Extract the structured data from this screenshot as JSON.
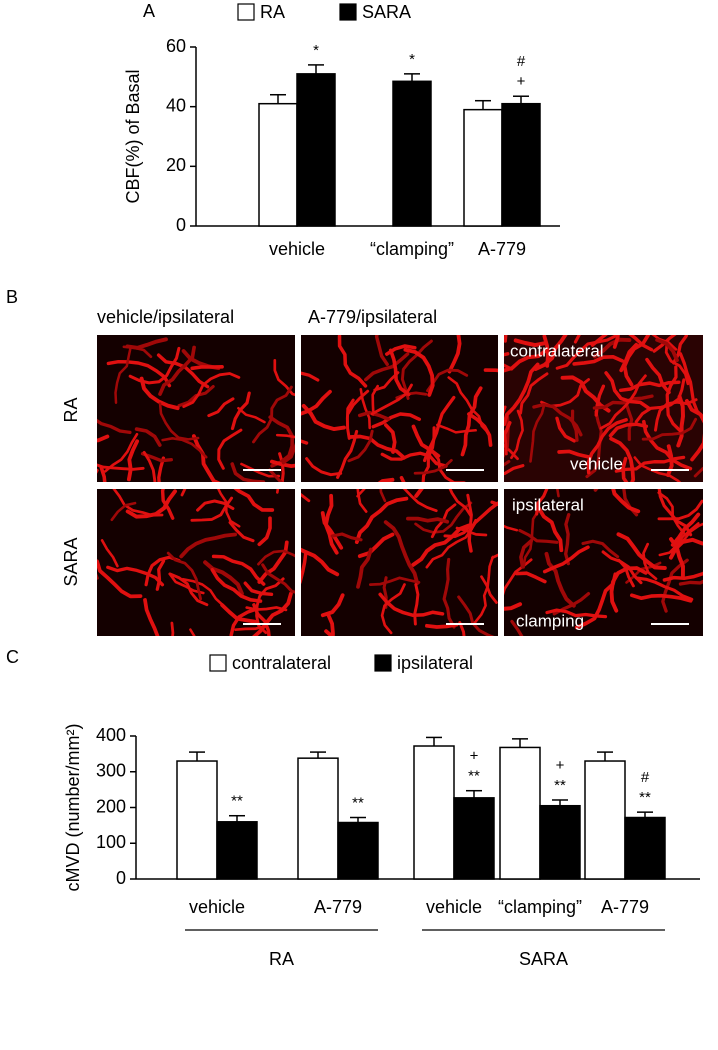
{
  "panel_labels": [
    "A",
    "B",
    "C"
  ],
  "images": {
    "column_titles": [
      "vehicle/ipsilateral",
      "A-779/ipsilateral"
    ],
    "row_labels": [
      "RA",
      "SARA"
    ],
    "overlays": [
      "contralateral",
      "vehicle",
      "ipsilateral",
      "clamping"
    ]
  },
  "chart_data": [
    {
      "type": "bar",
      "ylabel": "CBF(%) of Basal",
      "categories": [
        "vehicle",
        "“clamping”",
        "A-779"
      ],
      "series": [
        {
          "name": "RA",
          "color": "#ffffff",
          "values": [
            41,
            null,
            39
          ],
          "errors": [
            3,
            null,
            3
          ]
        },
        {
          "name": "SARA",
          "color": "#000000",
          "values": [
            51,
            48.5,
            41
          ],
          "errors": [
            3,
            2.5,
            2.5
          ],
          "annotations": [
            [
              "*"
            ],
            [
              "*"
            ],
            [
              "+",
              "#"
            ]
          ]
        }
      ],
      "ylim": [
        0,
        60
      ],
      "yticks": [
        0,
        20,
        40,
        60
      ]
    },
    {
      "type": "bar",
      "ylabel": "cMVD (number/mm²)",
      "groups": [
        {
          "name": "RA",
          "categories": [
            "vehicle",
            "A-779"
          ]
        },
        {
          "name": "SARA",
          "categories": [
            "vehicle",
            "“clamping”",
            "A-779"
          ]
        }
      ],
      "series": [
        {
          "name": "contralateral",
          "color": "#ffffff",
          "values": [
            330,
            338,
            372,
            368,
            330
          ],
          "errors": [
            25,
            17,
            24,
            24,
            25
          ]
        },
        {
          "name": "ipsilateral",
          "color": "#000000",
          "values": [
            160,
            158,
            227,
            205,
            172
          ],
          "errors": [
            17,
            14,
            20,
            16,
            15
          ],
          "annotations": [
            [
              "**"
            ],
            [
              "**"
            ],
            [
              "**",
              "+"
            ],
            [
              "**",
              "+"
            ],
            [
              "**",
              "#"
            ]
          ]
        }
      ],
      "ylim": [
        0,
        400
      ],
      "yticks": [
        0,
        100,
        200,
        300,
        400
      ]
    }
  ]
}
